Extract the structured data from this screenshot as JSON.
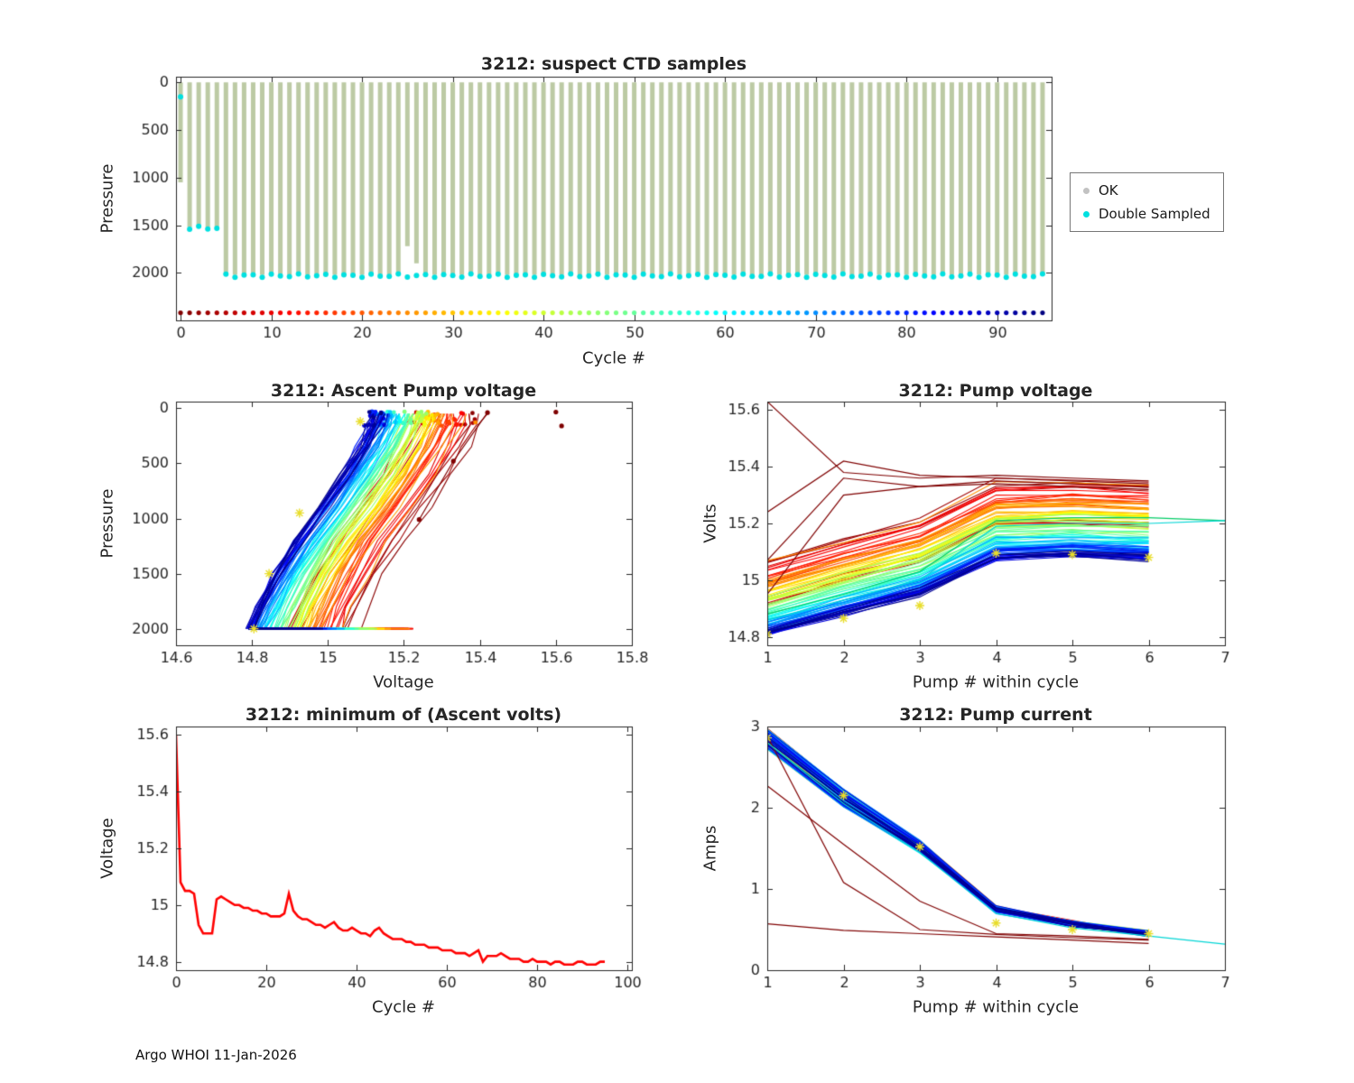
{
  "footer": "Argo WHOI 11-Jan-2026",
  "colors": {
    "axis": "#262626",
    "ok_marker": "#c2c2c2",
    "double_sampled": "#00e0e0",
    "bar": "#bccaa4",
    "min_line": "#ff0000",
    "outlier": "#7f0000",
    "asterisk": "#e8dd2a",
    "extended_green": "#00cc66",
    "extended_cyan": "#00d5d5"
  },
  "min_volts": [
    15.6,
    15.08,
    15.05,
    15.05,
    15.04,
    14.93,
    14.9,
    14.9,
    14.9,
    15.02,
    15.03,
    15.02,
    15.01,
    15.0,
    15.0,
    14.99,
    14.99,
    14.98,
    14.98,
    14.97,
    14.97,
    14.96,
    14.96,
    14.96,
    14.97,
    15.04,
    14.98,
    14.96,
    14.95,
    14.95,
    14.94,
    14.93,
    14.93,
    14.92,
    14.93,
    14.94,
    14.92,
    14.91,
    14.91,
    14.92,
    14.91,
    14.9,
    14.9,
    14.89,
    14.91,
    14.92,
    14.9,
    14.89,
    14.88,
    14.88,
    14.88,
    14.87,
    14.87,
    14.86,
    14.86,
    14.86,
    14.85,
    14.85,
    14.85,
    14.84,
    14.84,
    14.84,
    14.83,
    14.83,
    14.83,
    14.82,
    14.83,
    14.84,
    14.8,
    14.82,
    14.82,
    14.82,
    14.83,
    14.82,
    14.81,
    14.81,
    14.81,
    14.8,
    14.8,
    14.81,
    14.8,
    14.8,
    14.8,
    14.79,
    14.8,
    14.8,
    14.79,
    14.79,
    14.79,
    14.8,
    14.8,
    14.79,
    14.79,
    14.79,
    14.8,
    14.8
  ],
  "chart_data": [
    {
      "type": "scatter",
      "title": "3212: suspect CTD samples",
      "xlabel": "Cycle #",
      "ylabel": "Pressure",
      "xlim": [
        -0.5,
        96
      ],
      "ylim": [
        -60,
        2500
      ],
      "xticks": [
        0,
        10,
        20,
        30,
        40,
        50,
        60,
        70,
        80,
        90
      ],
      "yticks": [
        0,
        500,
        1000,
        1500,
        2000
      ],
      "legend": [
        {
          "label": "OK"
        },
        {
          "label": "Double Sampled"
        }
      ],
      "n_cycles": 96,
      "cycle_dot_row_pressure": 2420,
      "ok_depths": [
        1050,
        1520,
        1520,
        1520,
        1520,
        2020,
        2020,
        2020,
        2020,
        2020,
        2020,
        2020,
        2020,
        2020,
        2020,
        2020,
        2020,
        2020,
        2020,
        2020,
        2020,
        2020,
        2020,
        2020,
        2020,
        1720,
        1900,
        2020,
        2020,
        2020,
        2020,
        2020,
        2020,
        2020,
        2020,
        2020,
        2020,
        2020,
        2020,
        2020,
        2020,
        2020,
        2020,
        2020,
        2020,
        2020,
        2020,
        2020,
        2020,
        2020,
        2020,
        2020,
        2020,
        2020,
        2020,
        2020,
        2020,
        2020,
        2020,
        2020,
        2020,
        2020,
        2020,
        2020,
        2020,
        2020,
        2020,
        2020,
        2020,
        2020,
        2020,
        2020,
        2020,
        2020,
        2020,
        2020,
        2020,
        2020,
        2020,
        2020,
        2020,
        2020,
        2020,
        2020,
        2020,
        2020,
        2020,
        2020,
        2020,
        2020,
        2020,
        2020,
        2020,
        2020,
        2020,
        2020
      ],
      "double_pressures": [
        150,
        1530,
        1530,
        1530,
        1530,
        2030,
        2030,
        2030,
        2030,
        2030,
        2030,
        2030,
        2030,
        2030,
        2030,
        2030,
        2030,
        2030,
        2030,
        2030,
        2030,
        2030,
        2030,
        2030,
        2030,
        2030,
        2030,
        2030,
        2030,
        2030,
        2030,
        2030,
        2030,
        2030,
        2030,
        2030,
        2030,
        2030,
        2030,
        2030,
        2030,
        2030,
        2030,
        2030,
        2030,
        2030,
        2030,
        2030,
        2030,
        2030,
        2030,
        2030,
        2030,
        2030,
        2030,
        2030,
        2030,
        2030,
        2030,
        2030,
        2030,
        2030,
        2030,
        2030,
        2030,
        2030,
        2030,
        2030,
        2030,
        2030,
        2030,
        2030,
        2030,
        2030,
        2030,
        2030,
        2030,
        2030,
        2030,
        2030,
        2030,
        2030,
        2030,
        2030,
        2030,
        2030,
        2030,
        2030,
        2030,
        2030,
        2030,
        2030,
        2030,
        2030,
        2030,
        2030
      ]
    },
    {
      "type": "line",
      "title": "3212: Ascent Pump voltage",
      "xlabel": "Voltage",
      "ylabel": "Pressure",
      "xlim": [
        14.6,
        15.8
      ],
      "ylim": [
        -60,
        2150
      ],
      "xticks": [
        14.6,
        14.8,
        15,
        15.2,
        15.4,
        15.6,
        15.8
      ],
      "yticks": [
        0,
        500,
        1000,
        1500,
        2000
      ],
      "profile_pressures": [
        2000,
        1800,
        1500,
        1200,
        900,
        600,
        350,
        150,
        50
      ],
      "profile_volt_offsets": [
        0,
        0.025,
        0.07,
        0.125,
        0.19,
        0.25,
        0.295,
        0.325,
        0.335
      ],
      "bottom_segment_length": 0.16,
      "asterisks": [
        [
          15.085,
          120
        ],
        [
          14.925,
          950
        ],
        [
          14.845,
          1500
        ],
        [
          14.805,
          2000
        ]
      ],
      "outlier_line": [
        [
          15.24,
          1010
        ],
        [
          15.33,
          480
        ],
        [
          15.42,
          40
        ]
      ],
      "outlier_dots": [
        [
          15.6,
          35
        ],
        [
          15.615,
          160
        ]
      ]
    },
    {
      "type": "line",
      "title": "3212: Pump voltage",
      "xlabel": "Pump # within cycle",
      "ylabel": "Volts",
      "xlim": [
        1,
        7
      ],
      "ylim": [
        15.63,
        14.77
      ],
      "xticks": [
        1,
        2,
        3,
        4,
        5,
        6,
        7
      ],
      "yticks": [
        14.8,
        15,
        15.2,
        15.4,
        15.6
      ],
      "x": [
        1,
        2,
        3,
        4,
        5,
        6
      ],
      "volt_offsets": [
        0.02,
        0.095,
        0.165,
        0.29,
        0.3,
        0.29
      ],
      "outlier_series": [
        [
          15.63,
          15.38,
          15.36,
          15.37,
          15.36,
          15.35
        ],
        [
          15.24,
          15.42,
          15.37,
          15.36,
          15.35,
          15.34
        ],
        [
          15.07,
          15.36,
          15.33,
          15.35,
          15.34,
          15.33
        ],
        [
          14.95,
          15.3,
          15.33,
          15.34,
          15.33,
          15.32
        ]
      ],
      "extended_series": [
        {
          "x": [
            1,
            2,
            3,
            4,
            5,
            6,
            7
          ],
          "values": [
            14.88,
            14.95,
            15.03,
            15.21,
            15.22,
            15.22,
            15.21
          ],
          "colorKey": "extended_green"
        },
        {
          "x": [
            1,
            2,
            3,
            4,
            5,
            6,
            7
          ],
          "values": [
            14.86,
            14.93,
            15.0,
            15.19,
            15.2,
            15.2,
            15.21
          ],
          "colorKey": "extended_cyan"
        }
      ],
      "asterisks": [
        [
          1,
          14.81
        ],
        [
          2,
          14.865
        ],
        [
          3,
          14.91
        ],
        [
          4,
          15.095
        ],
        [
          5,
          15.09
        ],
        [
          6,
          15.08
        ]
      ]
    },
    {
      "type": "line",
      "title": "3212: minimum of (Ascent volts)",
      "xlabel": "Cycle #",
      "ylabel": "Voltage",
      "xlim": [
        0,
        101
      ],
      "ylim": [
        15.63,
        14.77
      ],
      "xticks": [
        0,
        20,
        40,
        60,
        80,
        100
      ],
      "yticks": [
        14.8,
        15,
        15.2,
        15.4,
        15.6
      ],
      "values_from": "min_volts"
    },
    {
      "type": "line",
      "title": "3212: Pump current",
      "xlabel": "Pump # within cycle",
      "ylabel": "Amps",
      "xlim": [
        1,
        7
      ],
      "ylim": [
        3,
        0
      ],
      "xticks": [
        1,
        2,
        3,
        4,
        5,
        6,
        7
      ],
      "yticks": [
        0,
        1,
        2,
        3
      ],
      "x": [
        1,
        2,
        3,
        4,
        5,
        6
      ],
      "base": [
        2.85,
        2.12,
        1.52,
        0.75,
        0.57,
        0.45
      ],
      "outlier_series": [
        [
          2.88,
          1.08,
          0.5,
          0.44,
          0.4,
          0.37
        ],
        [
          2.27,
          1.55,
          0.85,
          0.45,
          0.42,
          0.38
        ],
        [
          0.57,
          0.49,
          0.45,
          0.41,
          0.37,
          0.33
        ]
      ],
      "extended_series": [
        {
          "x": [
            1,
            2,
            3,
            4,
            5,
            6,
            7
          ],
          "values": [
            2.8,
            2.05,
            1.45,
            0.7,
            0.52,
            0.42,
            0.32
          ],
          "colorKey": "extended_cyan"
        }
      ],
      "asterisks": [
        [
          1,
          2.86
        ],
        [
          2,
          2.15
        ],
        [
          3,
          1.52
        ],
        [
          4,
          0.58
        ],
        [
          5,
          0.5
        ],
        [
          6,
          0.45
        ]
      ]
    }
  ]
}
